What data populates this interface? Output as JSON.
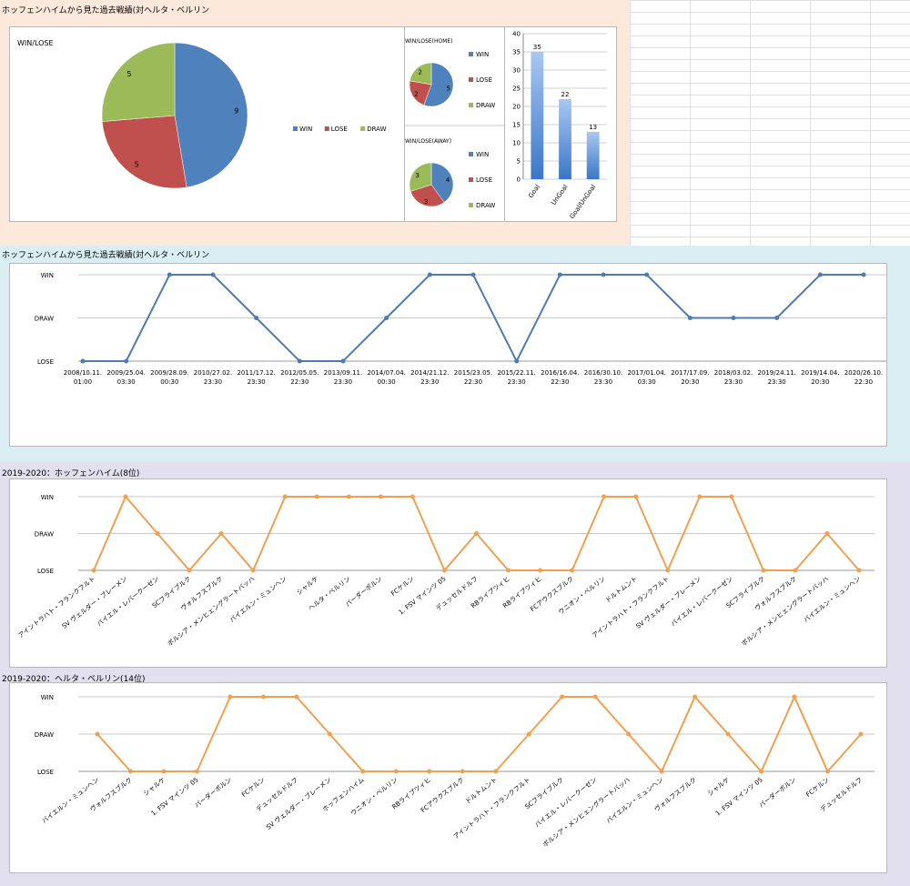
{
  "sections": {
    "top_title": "ホッフェンハイムから見た過去戦績(対ヘルタ・ベルリン",
    "mid_title": "ホッフェンハイムから見た過去戦績(対ヘルタ・ベルリン",
    "hoff_title": "2019-2020：ホッフェンハイム(8位)",
    "hertha_title": "2019-2020：ヘルタ・ベルリン(14位)"
  },
  "levels": [
    "LOSE",
    "DRAW",
    "WIN"
  ],
  "colors": {
    "win": "#4f81bd",
    "lose": "#c0504d",
    "draw": "#9bbb59",
    "line_blue": "#4f7bb0",
    "line_orange": "#f0a050",
    "band_peach": "#fde9dc",
    "band_blue": "#dbeef4",
    "band_lavender": "#e2dfee"
  },
  "chart_data": [
    {
      "type": "pie",
      "title": "WIN/LOSE",
      "slices": [
        {
          "label": "WIN",
          "value": 9
        },
        {
          "label": "LOSE",
          "value": 5
        },
        {
          "label": "DRAW",
          "value": 5
        }
      ],
      "legend": "right"
    },
    {
      "type": "pie",
      "title": "WIN/LOSE(HOME)",
      "slices": [
        {
          "label": "WIN",
          "value": 5
        },
        {
          "label": "LOSE",
          "value": 2
        },
        {
          "label": "DRAW",
          "value": 2
        }
      ],
      "legend": "right"
    },
    {
      "type": "pie",
      "title": "WIN/LOSE(AWAY)",
      "slices": [
        {
          "label": "WIN",
          "value": 4
        },
        {
          "label": "LOSE",
          "value": 3
        },
        {
          "label": "DRAW",
          "value": 3
        }
      ],
      "legend": "right"
    },
    {
      "type": "bar",
      "categories": [
        "Goal",
        "UnGoal",
        "Goal/UnGoal"
      ],
      "values": [
        35,
        22,
        13
      ],
      "ylim": [
        0,
        40
      ],
      "yticks": [
        0,
        5,
        10,
        15,
        20,
        25,
        30,
        35,
        40
      ],
      "grid": true
    },
    {
      "type": "line",
      "x": [
        "2008/10.11.\n01:00",
        "2009/25.04.\n03:30",
        "2009/28.09.\n00:30",
        "2010/27.02.\n23:30",
        "2011/17.12.\n23:30",
        "2012/05.05.\n22:30",
        "2013/09.11.\n23:30",
        "2014/07.04.\n00:30",
        "2014/21.12.\n23:30",
        "2015/23.05.\n22:30",
        "2015/22.11.\n23:30",
        "2016/16.04.\n22:30",
        "2016/30.10.\n23:30",
        "2017/01.04.\n03:30",
        "2017/17.09.\n20:30",
        "2018/03.02.\n23:30",
        "2019/24.11.\n23:30",
        "2019/14.04.\n20:30",
        "2020/26.10.\n22:30"
      ],
      "values": [
        "LOSE",
        "LOSE",
        "WIN",
        "WIN",
        "DRAW",
        "LOSE",
        "LOSE",
        "DRAW",
        "WIN",
        "WIN",
        "LOSE",
        "WIN",
        "WIN",
        "WIN",
        "DRAW",
        "DRAW",
        "DRAW",
        "WIN",
        "WIN"
      ]
    },
    {
      "type": "line",
      "x": [
        "アイントラハト・フランクフルト",
        "SV ヴェルダー・ブレーメン",
        "バイエル・レバークーゼン",
        "SCフライブルク",
        "ヴォルフスブルク",
        "ボルシア・メンヒェングラートバッハ",
        "バイエルン・ミュンヘン",
        "シャルケ",
        "ヘルタ・ベルリン",
        "パーダーボルン",
        "FCケルン",
        "1. FSV マインツ 05",
        "デュッセルドルフ",
        "RBライプツィヒ",
        "RBライプツィヒ",
        "FCアウクスブルク",
        "ウニオン・ベルリン",
        "ドルトムント",
        "アイントラハト・フランクフルト",
        "SV ヴェルダー・ブレーメン",
        "バイエル・レバークーゼン",
        "SCフライブルク",
        "ヴォルフスブルク",
        "ボルシア・メンヒェングラートバッハ",
        "バイエルン・ミュンヘン"
      ],
      "values": [
        "LOSE",
        "WIN",
        "DRAW",
        "LOSE",
        "DRAW",
        "LOSE",
        "WIN",
        "WIN",
        "WIN",
        "WIN",
        "WIN",
        "LOSE",
        "DRAW",
        "LOSE",
        "LOSE",
        "LOSE",
        "WIN",
        "WIN",
        "LOSE",
        "WIN",
        "WIN",
        "LOSE",
        "LOSE",
        "DRAW",
        "LOSE"
      ]
    },
    {
      "type": "line",
      "x": [
        "バイエルン・ミュンヘン",
        "ヴォルフスブルク",
        "シャルケ",
        "1. FSV マインツ 05",
        "パーダーボルン",
        "FCケルン",
        "デュッセルドルフ",
        "SV ヴェルダー・ブレーメン",
        "ホッフェンハイム",
        "ウニオン・ベルリン",
        "RBライプツィヒ",
        "FCアウクスブルク",
        "ドルトムント",
        "アイントラハト・フランクフルト",
        "SCフライブルク",
        "バイエル・レバークーゼン",
        "ボルシア・メンヒェングラートバッハ",
        "バイエルン・ミュンヘン",
        "ヴォルフスブルク",
        "シャルケ",
        "1. FSV マインツ 05",
        "パーダーボルン",
        "FCケルン",
        "デュッセルドルフ"
      ],
      "values": [
        "DRAW",
        "LOSE",
        "LOSE",
        "LOSE",
        "WIN",
        "WIN",
        "WIN",
        "DRAW",
        "LOSE",
        "LOSE",
        "LOSE",
        "LOSE",
        "LOSE",
        "DRAW",
        "WIN",
        "WIN",
        "DRAW",
        "LOSE",
        "WIN",
        "DRAW",
        "LOSE",
        "WIN",
        "LOSE",
        "DRAW"
      ]
    }
  ]
}
